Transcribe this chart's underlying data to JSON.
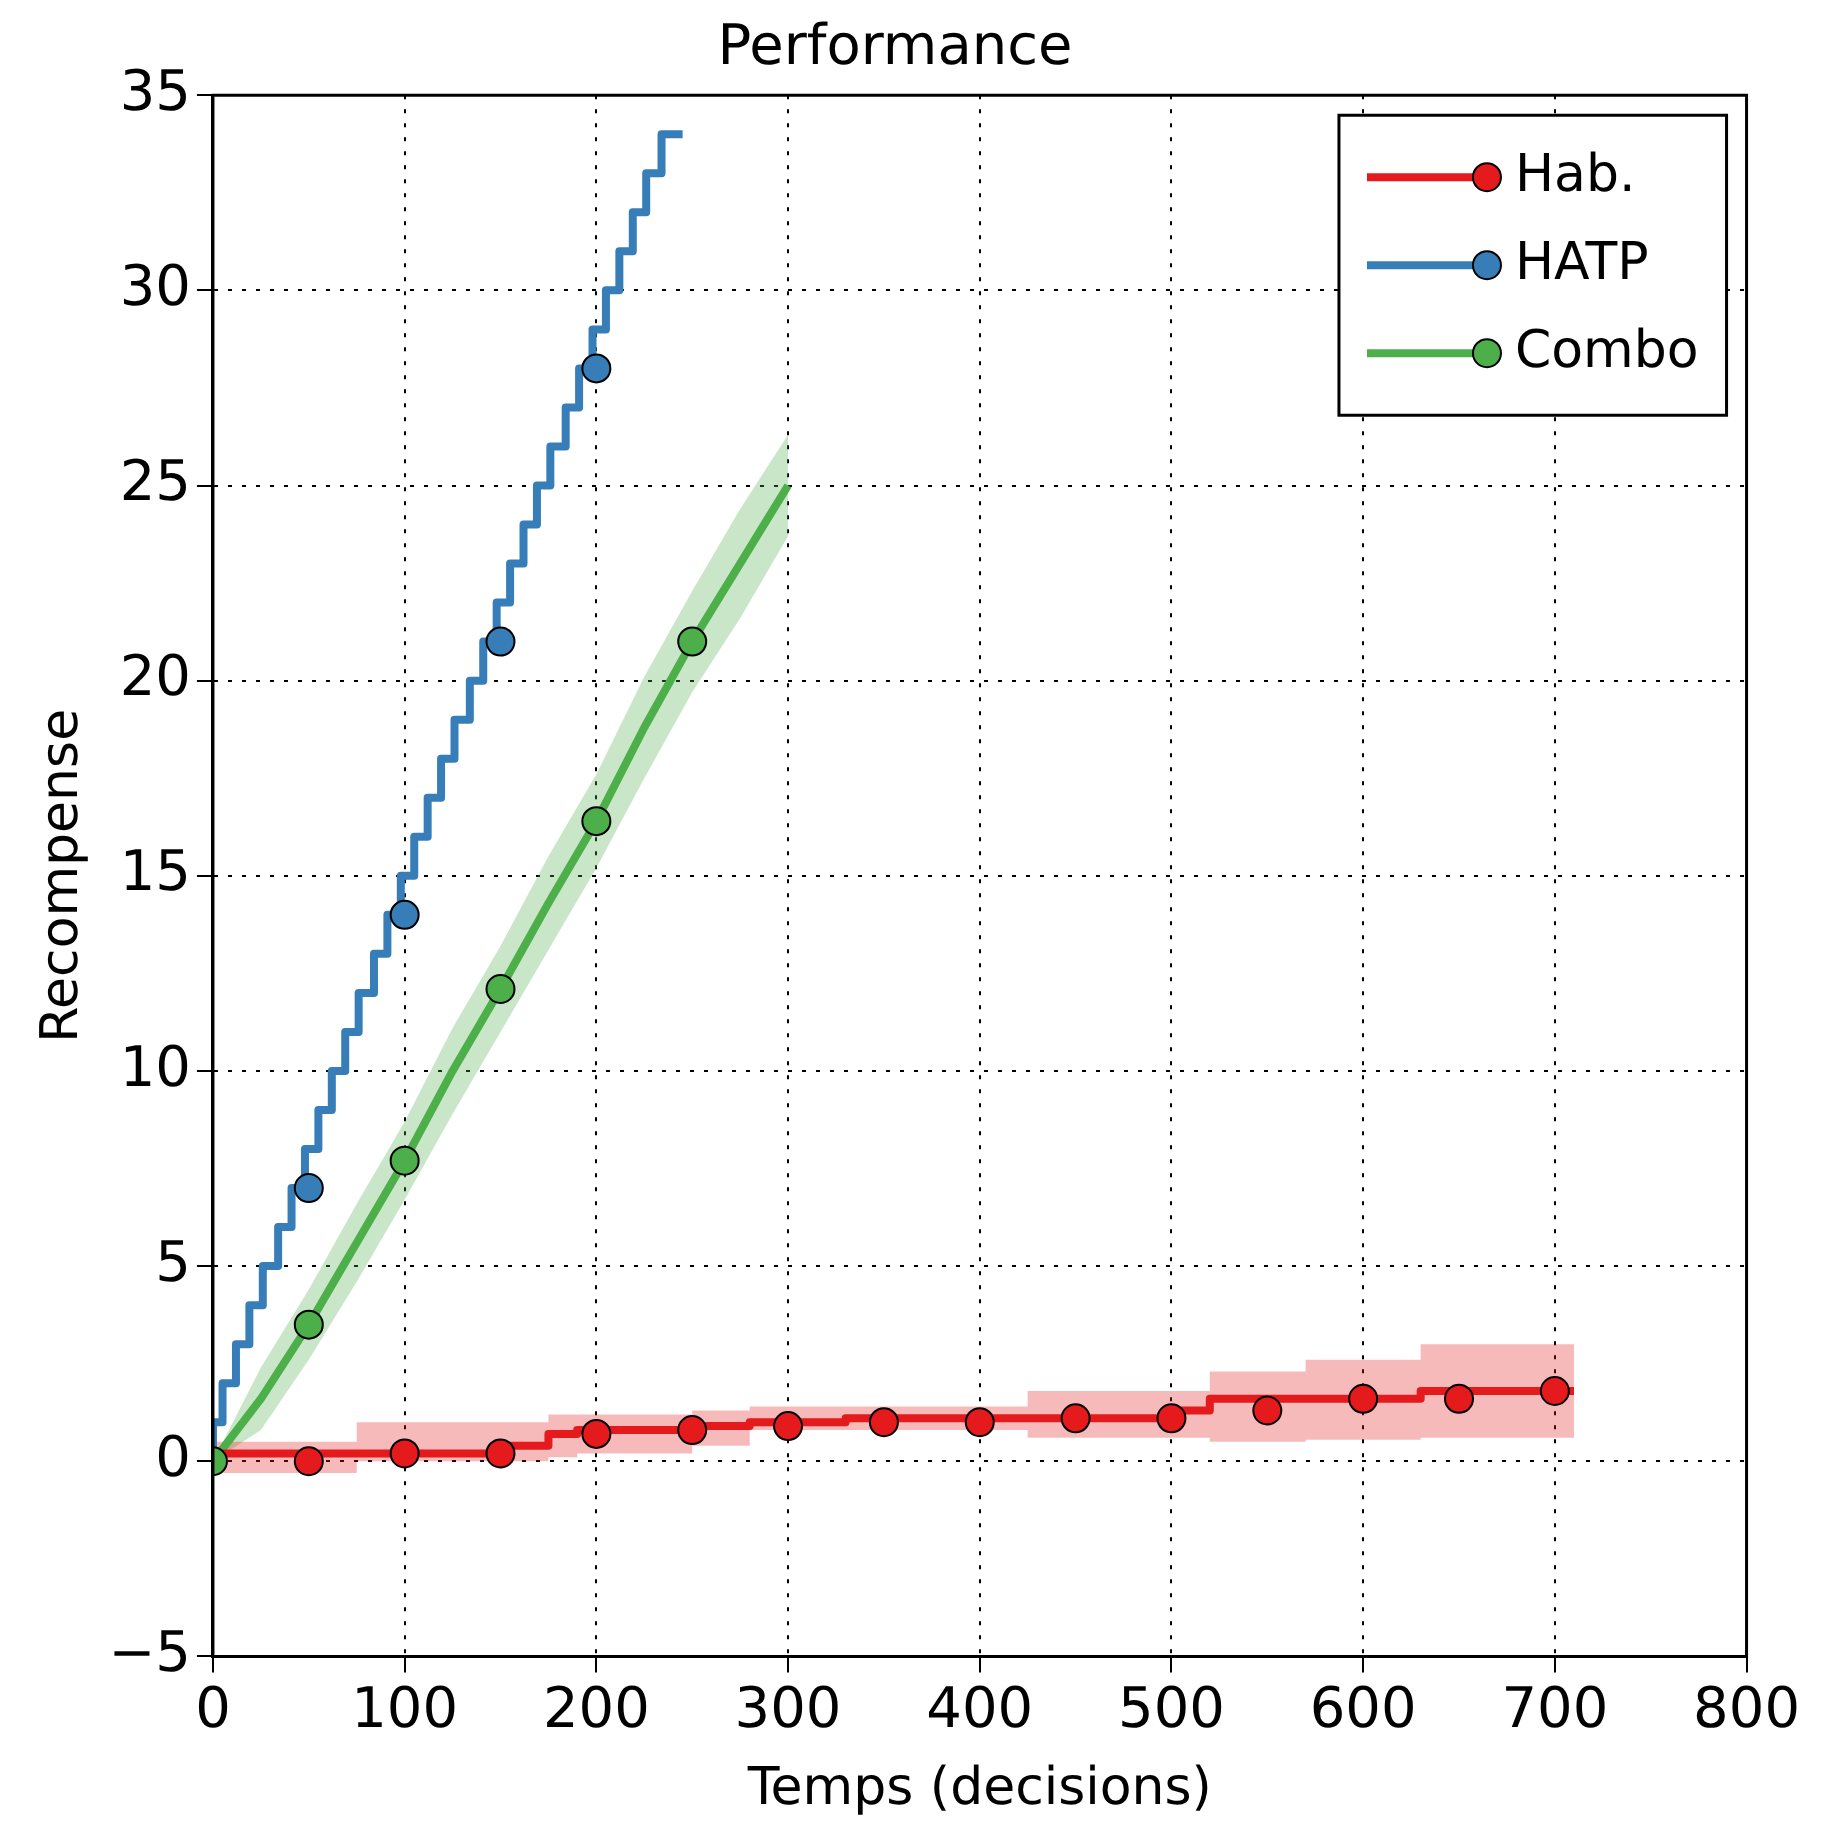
{
  "chart_data": {
    "type": "step",
    "title": "Performance",
    "xlabel": "Temps (decisions)",
    "ylabel": "Recompense",
    "xlim": [
      0,
      800
    ],
    "ylim": [
      -5,
      35
    ],
    "xticks": [
      0,
      100,
      200,
      300,
      400,
      500,
      600,
      700,
      800
    ],
    "yticks": [
      {
        "value": -5,
        "label": "−5"
      },
      0,
      5,
      10,
      15,
      20,
      25,
      30,
      35
    ],
    "grid": true,
    "legend": "top right",
    "line_style": "solid",
    "series": [
      {
        "name": "Hab.",
        "color": "#e41a1c",
        "marker": "none",
        "x": [
          0,
          75,
          150,
          175,
          190,
          250,
          280,
          330,
          425,
          500,
          520,
          570,
          630,
          670,
          710
        ],
        "values": [
          0,
          0.2,
          0.2,
          0.4,
          0.7,
          0.8,
          0.9,
          1.0,
          1.1,
          1.1,
          1.3,
          1.6,
          1.6,
          1.8,
          1.8
        ],
        "lower": [
          0,
          -0.3,
          0,
          0,
          0.1,
          0.2,
          0.4,
          0.8,
          0.8,
          0.6,
          0.6,
          0.5,
          0.55,
          0.6,
          0.6
        ],
        "upper": [
          0,
          0.5,
          1.0,
          1.0,
          1.2,
          1.2,
          1.3,
          1.4,
          1.4,
          1.8,
          1.8,
          2.3,
          2.6,
          3.0,
          3.0
        ]
      },
      {
        "name": "HATP",
        "color": "#377eb8",
        "marker": "none",
        "x": [
          0,
          5,
          12,
          19,
          26,
          34,
          41,
          48,
          55,
          62,
          69,
          76,
          84,
          91,
          98,
          105,
          112,
          119,
          126,
          134,
          141,
          148,
          155,
          162,
          169,
          176,
          184,
          191,
          198,
          205,
          212,
          219,
          226,
          234,
          241,
          245
        ],
        "values": [
          0,
          1,
          2,
          3,
          4,
          5,
          6,
          7,
          8,
          9,
          10,
          11,
          12,
          13,
          14,
          15,
          16,
          17,
          18,
          19,
          20,
          21,
          22,
          23,
          24,
          25,
          26,
          27,
          28,
          29,
          30,
          31,
          32,
          33,
          34,
          34
        ]
      },
      {
        "name": "Combo",
        "color": "#4daf4a",
        "type": "line",
        "marker": "none",
        "x": [
          0,
          25,
          50,
          75,
          100,
          125,
          150,
          175,
          200,
          225,
          250,
          275,
          300
        ],
        "values": [
          0,
          1.6,
          3.5,
          5.6,
          7.7,
          10,
          12.1,
          14.3,
          16.4,
          18.8,
          21,
          23,
          25
        ],
        "lower": [
          0,
          0.8,
          2.6,
          4.6,
          6.7,
          8.9,
          11,
          13.1,
          15.2,
          17.5,
          19.7,
          21.6,
          23.7
        ],
        "upper": [
          0,
          2.4,
          4.4,
          6.6,
          8.7,
          11.1,
          13.2,
          15.5,
          17.6,
          20.1,
          22.3,
          24.4,
          26.3
        ]
      },
      {
        "color": "#e41a1c",
        "type": "scatter",
        "marker": "circle",
        "x": [
          50,
          100,
          150,
          200,
          250,
          300,
          350,
          400,
          450,
          500,
          550,
          600,
          650,
          700
        ],
        "values": [
          0,
          0.2,
          0.2,
          0.7,
          0.8,
          0.9,
          1.0,
          1.0,
          1.1,
          1.1,
          1.3,
          1.6,
          1.6,
          1.8
        ]
      },
      {
        "color": "#377eb8",
        "type": "scatter",
        "marker": "circle",
        "x": [
          50,
          100,
          150,
          200
        ],
        "values": [
          7,
          14,
          21,
          28
        ]
      },
      {
        "color": "#4daf4a",
        "type": "scatter",
        "marker": "circle",
        "x": [
          0,
          50,
          100,
          150,
          200,
          250
        ],
        "values": [
          0,
          3.5,
          7.7,
          12.1,
          16.4,
          21
        ]
      }
    ]
  }
}
